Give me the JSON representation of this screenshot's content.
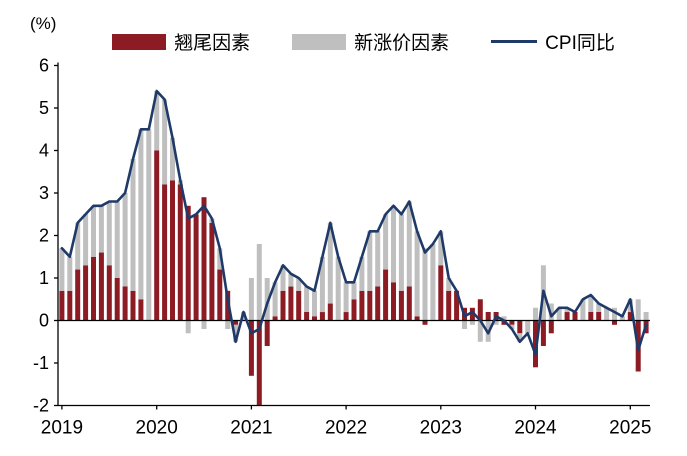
{
  "unit_label": "(%)",
  "legend": {
    "carryover": "翘尾因素",
    "new_price": "新涨价因素",
    "cpi": "CPI同比"
  },
  "colors": {
    "carryover": "#8C1B24",
    "new_price": "#BFBFBF",
    "cpi_line": "#1F3A68",
    "axis": "#000000"
  },
  "chart_data": {
    "type": "bar",
    "subtype": "stacked-bar-with-line-overlay",
    "title": "",
    "xlabel": "",
    "ylabel": "(%)",
    "ylim": [
      -2,
      6
    ],
    "yticks": [
      6,
      5,
      4,
      3,
      2,
      1,
      0,
      -1,
      -2
    ],
    "xticks": [
      "2019",
      "2020",
      "2021",
      "2022",
      "2023",
      "2024",
      "2025"
    ],
    "grid": false,
    "legend_position": "top",
    "x": [
      "2019-01",
      "2019-02",
      "2019-03",
      "2019-04",
      "2019-05",
      "2019-06",
      "2019-07",
      "2019-08",
      "2019-09",
      "2019-10",
      "2019-11",
      "2019-12",
      "2020-01",
      "2020-02",
      "2020-03",
      "2020-04",
      "2020-05",
      "2020-06",
      "2020-07",
      "2020-08",
      "2020-09",
      "2020-10",
      "2020-11",
      "2020-12",
      "2021-01",
      "2021-02",
      "2021-03",
      "2021-04",
      "2021-05",
      "2021-06",
      "2021-07",
      "2021-08",
      "2021-09",
      "2021-10",
      "2021-11",
      "2021-12",
      "2022-01",
      "2022-02",
      "2022-03",
      "2022-04",
      "2022-05",
      "2022-06",
      "2022-07",
      "2022-08",
      "2022-09",
      "2022-10",
      "2022-11",
      "2022-12",
      "2023-01",
      "2023-02",
      "2023-03",
      "2023-04",
      "2023-05",
      "2023-06",
      "2023-07",
      "2023-08",
      "2023-09",
      "2023-10",
      "2023-11",
      "2023-12",
      "2024-01",
      "2024-02",
      "2024-03",
      "2024-04",
      "2024-05",
      "2024-06",
      "2024-07",
      "2024-08",
      "2024-09",
      "2024-10",
      "2024-11",
      "2024-12",
      "2025-01",
      "2025-02",
      "2025-03"
    ],
    "series": [
      {
        "name": "翘尾因素",
        "render": "bar",
        "stack": true,
        "color_key": "carryover",
        "values": [
          0.7,
          0.7,
          1.2,
          1.3,
          1.5,
          1.6,
          1.3,
          1.0,
          0.8,
          0.7,
          0.5,
          0.0,
          4.0,
          3.2,
          3.3,
          3.2,
          2.7,
          2.5,
          2.9,
          2.3,
          1.2,
          0.7,
          -0.1,
          0.0,
          -1.3,
          -2.0,
          -0.6,
          0.1,
          0.7,
          0.8,
          0.7,
          0.2,
          0.1,
          0.2,
          0.4,
          0.0,
          0.2,
          0.5,
          0.7,
          0.7,
          0.8,
          1.2,
          0.9,
          0.7,
          0.8,
          0.1,
          -0.1,
          0.0,
          1.3,
          0.7,
          0.7,
          0.3,
          0.3,
          0.5,
          0.2,
          0.2,
          -0.1,
          -0.1,
          -0.3,
          0.0,
          -1.1,
          -0.6,
          -0.3,
          0.0,
          0.2,
          0.2,
          0.0,
          0.2,
          0.2,
          0.0,
          -0.1,
          0.0,
          0.2,
          -1.2,
          -0.3
        ]
      },
      {
        "name": "新涨价因素",
        "render": "bar",
        "stack": true,
        "color_key": "new_price",
        "values": [
          1.0,
          0.8,
          1.1,
          1.2,
          1.2,
          1.1,
          1.5,
          1.8,
          2.2,
          3.1,
          4.0,
          4.5,
          1.4,
          2.0,
          1.0,
          0.1,
          -0.3,
          0.0,
          -0.2,
          0.1,
          0.5,
          -0.2,
          -0.4,
          0.2,
          1.0,
          1.8,
          1.0,
          0.8,
          0.6,
          0.3,
          0.3,
          0.6,
          0.6,
          1.3,
          1.9,
          1.5,
          0.7,
          0.4,
          0.8,
          1.4,
          1.3,
          1.3,
          1.8,
          1.8,
          2.0,
          2.0,
          1.7,
          1.8,
          0.8,
          0.3,
          0.0,
          -0.2,
          -0.1,
          -0.5,
          -0.5,
          -0.1,
          0.1,
          -0.1,
          -0.2,
          -0.3,
          0.3,
          1.3,
          0.4,
          0.3,
          0.1,
          0.0,
          0.5,
          0.4,
          0.2,
          0.3,
          0.3,
          0.1,
          0.3,
          0.5,
          0.2
        ]
      },
      {
        "name": "CPI同比",
        "render": "line",
        "color_key": "cpi_line",
        "values": [
          1.7,
          1.5,
          2.3,
          2.5,
          2.7,
          2.7,
          2.8,
          2.8,
          3.0,
          3.8,
          4.5,
          4.5,
          5.4,
          5.2,
          4.3,
          3.3,
          2.4,
          2.5,
          2.7,
          2.4,
          1.7,
          0.5,
          -0.5,
          0.2,
          -0.3,
          -0.2,
          0.4,
          0.9,
          1.3,
          1.1,
          1.0,
          0.8,
          0.7,
          1.5,
          2.3,
          1.5,
          0.9,
          0.9,
          1.5,
          2.1,
          2.1,
          2.5,
          2.7,
          2.5,
          2.8,
          2.1,
          1.6,
          1.8,
          2.1,
          1.0,
          0.7,
          0.1,
          0.2,
          0.0,
          -0.3,
          0.1,
          0.0,
          -0.2,
          -0.5,
          -0.3,
          -0.8,
          0.7,
          0.1,
          0.3,
          0.3,
          0.2,
          0.5,
          0.6,
          0.4,
          0.3,
          0.2,
          0.1,
          0.5,
          -0.7,
          -0.1
        ]
      }
    ]
  }
}
